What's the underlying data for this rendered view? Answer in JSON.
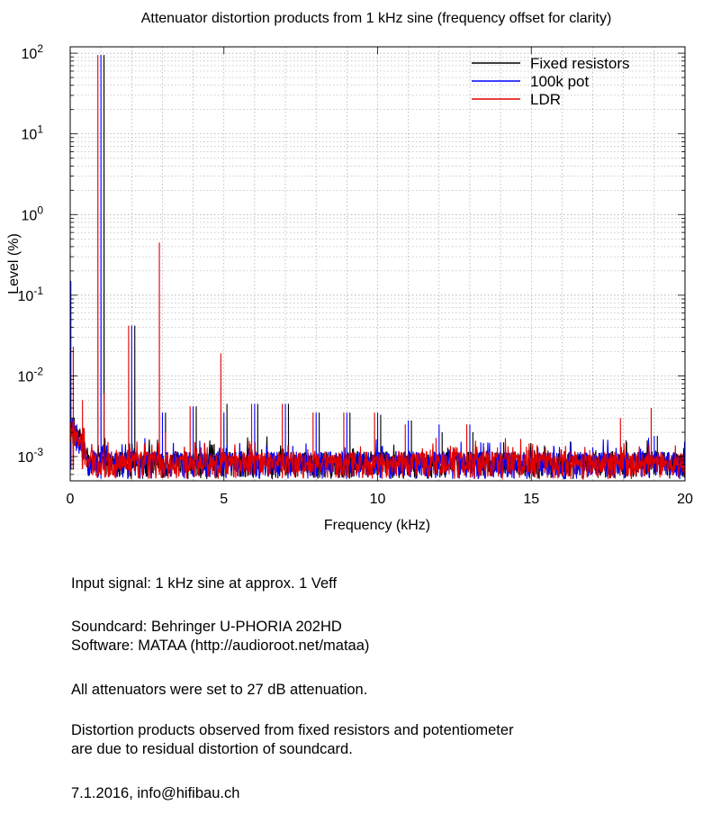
{
  "chart_data": {
    "type": "line",
    "title": "Attenuator distortion products from 1 kHz sine (frequency offset for clarity)",
    "xlabel": "Frequency (kHz)",
    "ylabel": "Level (%)",
    "xlim": [
      0,
      20
    ],
    "ylim": [
      0.0005,
      120
    ],
    "yscale": "log",
    "grid": true,
    "legend": "top-right",
    "x_ticks": [
      "0",
      "5",
      "10",
      "15",
      "20"
    ],
    "y_ticks": [
      {
        "value": 0.001,
        "base": "10",
        "exp": "-3"
      },
      {
        "value": 0.01,
        "base": "10",
        "exp": "-2"
      },
      {
        "value": 0.1,
        "base": "10",
        "exp": "-1"
      },
      {
        "value": 1,
        "base": "10",
        "exp": "0"
      },
      {
        "value": 10,
        "base": "10",
        "exp": "1"
      },
      {
        "value": 100,
        "base": "10",
        "exp": "2"
      }
    ],
    "noise_floor": 0.0007,
    "series": [
      {
        "name": "Fixed resistors",
        "color": "#000000",
        "offset_khz": 0.1,
        "peaks": [
          [
            1,
            95
          ],
          [
            2,
            0.042
          ],
          [
            3,
            0.0035
          ],
          [
            4,
            0.0042
          ],
          [
            5,
            0.0045
          ],
          [
            6,
            0.0045
          ],
          [
            7,
            0.0045
          ],
          [
            8,
            0.0035
          ],
          [
            9,
            0.0035
          ],
          [
            10,
            0.0033
          ],
          [
            11,
            0.0028
          ],
          [
            12,
            0.002
          ],
          [
            13,
            0.002
          ],
          [
            14,
            0.0015
          ],
          [
            15,
            0.0012
          ],
          [
            16,
            0.001
          ],
          [
            17,
            0.0012
          ],
          [
            18,
            0.0015
          ],
          [
            19,
            0.0018
          ]
        ]
      },
      {
        "name": "100k pot",
        "color": "#0000ff",
        "offset_khz": 0.0,
        "peaks": [
          [
            0.02,
            0.15
          ],
          [
            1,
            95
          ],
          [
            2,
            0.042
          ],
          [
            3,
            0.0035
          ],
          [
            4,
            0.0042
          ],
          [
            5,
            0.0035
          ],
          [
            6,
            0.0045
          ],
          [
            7,
            0.0045
          ],
          [
            8,
            0.0035
          ],
          [
            9,
            0.0035
          ],
          [
            10,
            0.0035
          ],
          [
            11,
            0.0028
          ],
          [
            12,
            0.0025
          ],
          [
            13,
            0.0025
          ],
          [
            14,
            0.0015
          ],
          [
            15,
            0.0012
          ],
          [
            16,
            0.001
          ],
          [
            17,
            0.0013
          ],
          [
            18,
            0.0012
          ],
          [
            19,
            0.0018
          ]
        ]
      },
      {
        "name": "LDR",
        "color": "#e00000",
        "offset_khz": -0.1,
        "peaks": [
          [
            0.05,
            0.03
          ],
          [
            0.2,
            0.023
          ],
          [
            0.5,
            0.005
          ],
          [
            1,
            95
          ],
          [
            1.2,
            0.006
          ],
          [
            2,
            0.042
          ],
          [
            3,
            0.45
          ],
          [
            3.2,
            0.002
          ],
          [
            4,
            0.0042
          ],
          [
            5,
            0.019
          ],
          [
            6,
            0.0045
          ],
          [
            7,
            0.0045
          ],
          [
            8,
            0.0035
          ],
          [
            9,
            0.0035
          ],
          [
            10,
            0.0035
          ],
          [
            11,
            0.0025
          ],
          [
            12,
            0.0017
          ],
          [
            13,
            0.0025
          ],
          [
            14,
            0.0013
          ],
          [
            15,
            0.0012
          ],
          [
            16,
            0.001
          ],
          [
            17,
            0.0012
          ],
          [
            18,
            0.003
          ],
          [
            19,
            0.004
          ]
        ]
      }
    ]
  },
  "notes": {
    "input_signal": "Input signal: 1 kHz sine at approx. 1 Veff",
    "soundcard": "Soundcard: Behringer U-PHORIA 202HD",
    "software": "Software: MATAA (http://audioroot.net/mataa)",
    "attenuation": "All attenuators were set to 27 dB attenuation.",
    "distortion_line1": "Distortion products observed from fixed resistors and potentiometer",
    "distortion_line2": "are due to residual distortion of soundcard.",
    "footer": "7.1.2016, info@hifibau.ch"
  }
}
